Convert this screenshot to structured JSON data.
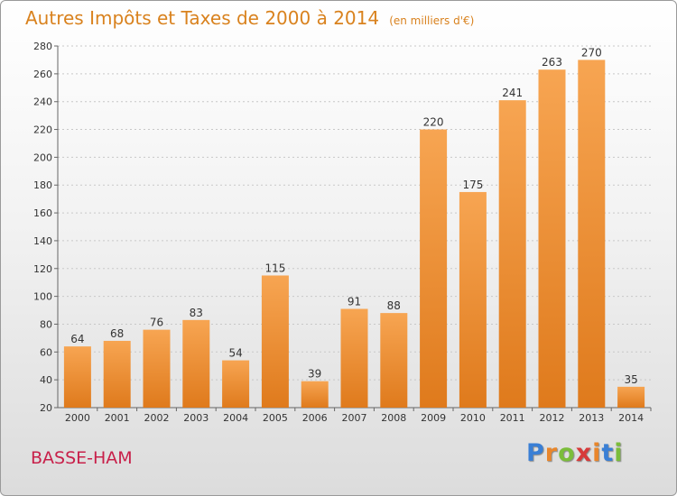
{
  "chart_data": {
    "type": "bar",
    "title": "Autres Impôts et Taxes de 2000 à 2014",
    "subtitle": "(en milliers d'€)",
    "xlabel": "",
    "ylabel": "",
    "categories": [
      "2000",
      "2001",
      "2002",
      "2003",
      "2004",
      "2005",
      "2006",
      "2007",
      "2008",
      "2009",
      "2010",
      "2011",
      "2012",
      "2013",
      "2014"
    ],
    "values": [
      64,
      68,
      76,
      83,
      54,
      115,
      39,
      91,
      88,
      220,
      175,
      241,
      263,
      270,
      35
    ],
    "data_labels": [
      "64",
      "68",
      "76",
      "83",
      "54",
      "115",
      "39",
      "91",
      "88",
      "220",
      "175",
      "241",
      "263",
      "270",
      "35"
    ],
    "ylim": [
      20,
      280
    ],
    "yticks": [
      "20",
      "40",
      "60",
      "80",
      "100",
      "120",
      "140",
      "160",
      "180",
      "200",
      "220",
      "240",
      "260",
      "280"
    ],
    "grid": true,
    "legend": "none",
    "bar_color": "#f08f2e"
  },
  "footer": {
    "commune": "BASSE-HAM",
    "logo_letters": [
      "P",
      "r",
      "o",
      "x",
      "i",
      "t",
      "i"
    ],
    "logo_colors": [
      "#3a7fd5",
      "#e9862b",
      "#7bbd3a",
      "#d73a3a",
      "#e9862b",
      "#3a7fd5",
      "#7bbd3a"
    ]
  }
}
